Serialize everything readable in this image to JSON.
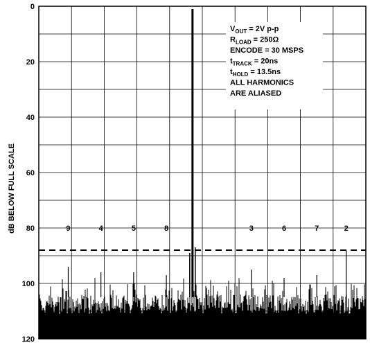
{
  "chart_data": {
    "type": "line",
    "ylabel": "dB BELOW FULL SCALE",
    "ylim": [
      0,
      120
    ],
    "y_inverted": true,
    "y_ticks": [
      "0",
      "20",
      "40",
      "60",
      "80",
      "100",
      "120"
    ],
    "grid": true,
    "x_divisions": 10,
    "fundamental": {
      "x_fraction": 0.47,
      "level_db": 1
    },
    "reference_line_db": 88,
    "noise_floor_db": [
      100,
      120
    ],
    "harmonic_labels": [
      {
        "label": "9",
        "x_fraction": 0.09,
        "peak_db": 94
      },
      {
        "label": "4",
        "x_fraction": 0.19,
        "peak_db": 96
      },
      {
        "label": "5",
        "x_fraction": 0.29,
        "peak_db": 96
      },
      {
        "label": "8",
        "x_fraction": 0.39,
        "peak_db": 97
      },
      {
        "label": "3",
        "x_fraction": 0.65,
        "peak_db": 95
      },
      {
        "label": "6",
        "x_fraction": 0.75,
        "peak_db": 98
      },
      {
        "label": "7",
        "x_fraction": 0.85,
        "peak_db": 97
      },
      {
        "label": "2",
        "x_fraction": 0.94,
        "peak_db": 88
      }
    ],
    "conditions": [
      {
        "main": "V",
        "sub": "OUT",
        "rest": " = 2V p-p"
      },
      {
        "main": "R",
        "sub": "LOAD",
        "rest": " = 250Ω"
      },
      {
        "main": "ENCODE = 30 MSPS",
        "sub": "",
        "rest": ""
      },
      {
        "main": "t",
        "sub": "TRACK",
        "rest": " = 20ns"
      },
      {
        "main": "t",
        "sub": "HOLD",
        "rest": " = 13.5ns"
      },
      {
        "main": "ALL HARMONICS",
        "sub": "",
        "rest": ""
      },
      {
        "main": "ARE ALIASED",
        "sub": "",
        "rest": ""
      }
    ]
  }
}
